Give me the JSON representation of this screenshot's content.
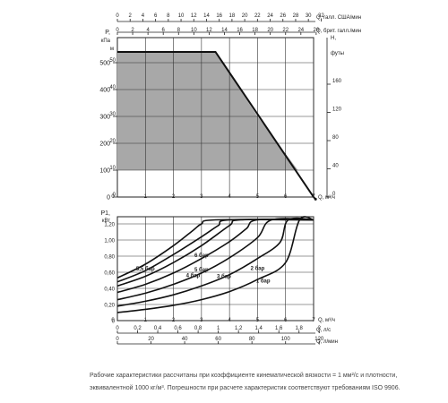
{
  "chart_data": [
    {
      "type": "area",
      "axes": {
        "q_usgpm": {
          "label": "Q, галл. США/мин",
          "ticks": [
            "0",
            "2",
            "4",
            "6",
            "8",
            "10",
            "12",
            "14",
            "16",
            "18",
            "20",
            "22",
            "24",
            "26",
            "28",
            "30",
            "32"
          ]
        },
        "q_impgpm": {
          "label": "Q, брит. галл./мин",
          "ticks": [
            "0",
            "2",
            "4",
            "6",
            "8",
            "10",
            "12",
            "14",
            "16",
            "18",
            "20",
            "22",
            "24",
            "26"
          ]
        },
        "q_m3h": {
          "label": "Q, м³/ч",
          "ticks": [
            "0",
            "1",
            "2",
            "3",
            "4",
            "5",
            "6",
            "7"
          ],
          "range": [
            0,
            8
          ]
        },
        "p_kpa": {
          "label_top": "P,",
          "label_unit": "кПа",
          "ticks": [
            "0",
            "100",
            "200",
            "300",
            "400",
            "500"
          ],
          "range": [
            0,
            600
          ]
        },
        "h_ft": {
          "label_top": "H,",
          "label_unit": "футы",
          "ticks": [
            "0",
            "40",
            "80",
            "120",
            "160"
          ]
        },
        "h_m": {
          "label_top": "H,",
          "label_unit": "м",
          "ticks": [
            "0",
            "10",
            "20",
            "30",
            "40",
            "50"
          ],
          "range": [
            0,
            60
          ]
        }
      },
      "series": [
        {
          "name": "",
          "x": [
            0,
            3.5,
            7
          ],
          "y": [
            540,
            540,
            0
          ]
        }
      ],
      "shaded_area": "gray",
      "grid": true
    },
    {
      "type": "line",
      "axes": {
        "p1_kw": {
          "label_top": "P1,",
          "label_unit": "кВт",
          "ticks": [
            "0",
            "0,20",
            "0,40",
            "0,60",
            "0,80",
            "1,00",
            "1,20"
          ],
          "range": [
            0,
            1.3
          ]
        },
        "q_m3h": {
          "label": "Q, м³/ч",
          "ticks": [
            "0",
            "1",
            "2",
            "3",
            "4",
            "5",
            "6",
            "7"
          ],
          "range": [
            0,
            8
          ]
        },
        "q_ls": {
          "label": "Q, л/с",
          "ticks": [
            "0",
            "0,2",
            "0,4",
            "0,6",
            "0,8",
            "1",
            "1,2",
            "1,4",
            "1,6",
            "1,8",
            "2"
          ]
        },
        "q_lmin": {
          "label": "Q, л/мин",
          "ticks": [
            "0",
            "20",
            "40",
            "60",
            "80",
            "100",
            "120"
          ]
        }
      },
      "series": [
        {
          "name": "6 бар",
          "x": [
            0,
            1,
            2,
            2.7,
            3,
            3.5,
            7
          ],
          "y": [
            0.53,
            0.7,
            0.93,
            1.12,
            1.2,
            1.25,
            1.25
          ]
        },
        {
          "name": "5,5 бар",
          "x": [
            0,
            1,
            2,
            3,
            3.6,
            4,
            7
          ],
          "y": [
            0.48,
            0.62,
            0.82,
            1.04,
            1.18,
            1.25,
            1.25
          ]
        },
        {
          "name": "5 бар",
          "x": [
            0,
            1,
            2,
            3,
            4,
            4.4,
            7
          ],
          "y": [
            0.43,
            0.55,
            0.72,
            0.93,
            1.18,
            1.25,
            1.25
          ]
        },
        {
          "name": "4 бар",
          "x": [
            0,
            1,
            2,
            3,
            4,
            4.6,
            5.0,
            7
          ],
          "y": [
            0.35,
            0.45,
            0.59,
            0.77,
            0.98,
            1.14,
            1.25,
            1.25
          ]
        },
        {
          "name": "3 бар",
          "x": [
            0,
            1,
            2,
            3,
            4,
            5,
            5.5,
            7
          ],
          "y": [
            0.26,
            0.34,
            0.45,
            0.59,
            0.78,
            1.03,
            1.25,
            1.25
          ]
        },
        {
          "name": "2 бар",
          "x": [
            0,
            1,
            2,
            3,
            4,
            5,
            5.8,
            6.1,
            7
          ],
          "y": [
            0.18,
            0.24,
            0.32,
            0.43,
            0.57,
            0.77,
            0.97,
            1.25,
            1.25
          ]
        },
        {
          "name": "1 бар",
          "x": [
            0,
            1,
            2,
            3,
            4,
            5,
            6,
            6.5,
            7
          ],
          "y": [
            0.1,
            0.14,
            0.19,
            0.26,
            0.36,
            0.51,
            0.72,
            1.25,
            1.25
          ]
        }
      ],
      "grid": true
    }
  ],
  "caption": {
    "line1": "Рабочие характеристики рассчитаны при коэффициенте кинематической вязкости = 1 мм²/с и плотности,",
    "line2": "эквивалентной 1000 кг/м³. Погрешности при расчете характеристик соответствуют требованиям ISO 9906."
  }
}
